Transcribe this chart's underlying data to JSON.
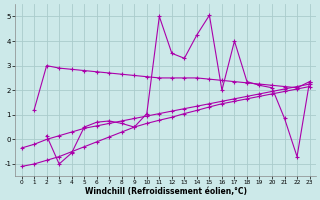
{
  "xlabel": "Windchill (Refroidissement éolien,°C)",
  "background_color": "#cce9e9",
  "grid_color": "#aacccc",
  "line_color": "#aa00aa",
  "xlim": [
    -0.5,
    23.5
  ],
  "ylim": [
    -1.5,
    5.5
  ],
  "xticks": [
    0,
    1,
    2,
    3,
    4,
    5,
    6,
    7,
    8,
    9,
    10,
    11,
    12,
    13,
    14,
    15,
    16,
    17,
    18,
    19,
    20,
    21,
    22,
    23
  ],
  "yticks": [
    -1,
    0,
    1,
    2,
    3,
    4,
    5
  ],
  "series": {
    "line1_x": [
      1,
      2,
      3,
      4,
      5,
      6,
      7,
      8,
      9,
      10,
      11,
      12,
      13,
      14,
      15,
      16,
      17,
      18,
      19,
      20,
      21,
      22,
      23
    ],
    "line1_y": [
      1.2,
      3.0,
      2.9,
      2.85,
      2.8,
      2.75,
      2.7,
      2.65,
      2.6,
      2.55,
      2.5,
      2.5,
      2.5,
      2.5,
      2.45,
      2.4,
      2.35,
      2.3,
      2.25,
      2.2,
      2.15,
      2.1,
      2.35
    ],
    "line2_x": [
      2,
      3,
      4,
      5,
      6,
      7,
      8,
      9,
      10,
      11,
      12,
      13,
      14,
      15,
      16,
      17,
      18,
      19,
      20,
      21,
      22,
      23
    ],
    "line2_y": [
      0.15,
      -1.0,
      -0.55,
      0.5,
      0.7,
      0.75,
      0.65,
      0.5,
      1.05,
      5.0,
      3.5,
      3.3,
      4.25,
      5.05,
      2.0,
      4.0,
      2.35,
      2.2,
      2.1,
      0.85,
      -0.7,
      2.35
    ],
    "line3_x": [
      0,
      1,
      2,
      3,
      4,
      5,
      6,
      7,
      8,
      9,
      10,
      11,
      12,
      13,
      14,
      15,
      16,
      17,
      18,
      19,
      20,
      21,
      22,
      23
    ],
    "line3_y": [
      -0.35,
      -0.2,
      0.0,
      0.15,
      0.3,
      0.45,
      0.55,
      0.65,
      0.75,
      0.85,
      0.95,
      1.05,
      1.15,
      1.25,
      1.35,
      1.45,
      1.55,
      1.65,
      1.75,
      1.85,
      1.95,
      2.05,
      2.15,
      2.25
    ],
    "line4_x": [
      0,
      1,
      2,
      3,
      4,
      5,
      6,
      7,
      8,
      9,
      10,
      11,
      12,
      13,
      14,
      15,
      16,
      17,
      18,
      19,
      20,
      21,
      22,
      23
    ],
    "line4_y": [
      -1.1,
      -1.0,
      -0.85,
      -0.7,
      -0.5,
      -0.3,
      -0.1,
      0.1,
      0.3,
      0.5,
      0.65,
      0.78,
      0.9,
      1.05,
      1.18,
      1.32,
      1.45,
      1.55,
      1.65,
      1.75,
      1.85,
      1.95,
      2.05,
      2.15
    ]
  }
}
